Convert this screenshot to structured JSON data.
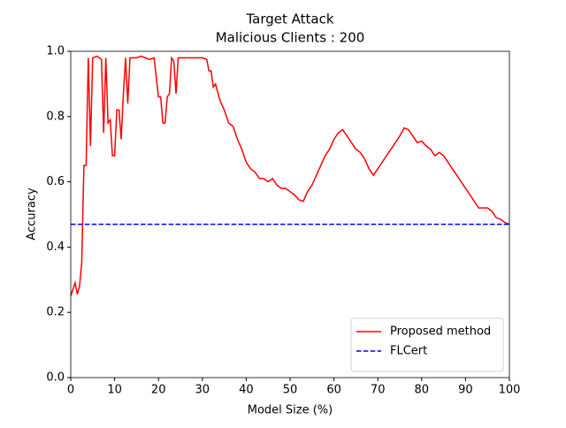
{
  "chart_data": {
    "type": "line",
    "title": "Target Attack",
    "subtitle": "Malicious Clients : 200",
    "xlabel": "Model Size (%)",
    "ylabel": "Accuracy",
    "xlim": [
      0,
      100
    ],
    "ylim": [
      0,
      1
    ],
    "xticks": [
      0,
      10,
      20,
      30,
      40,
      50,
      60,
      70,
      80,
      90,
      100
    ],
    "yticks": [
      {
        "value": 0,
        "label": "0.0"
      },
      0.2,
      0.4,
      0.6,
      0.8,
      {
        "value": 1,
        "label": "1.0"
      }
    ],
    "grid": false,
    "legend": "lower right",
    "series": [
      {
        "name": "Proposed method",
        "color": "#ff0000",
        "dash": "solid",
        "x": [
          0,
          1,
          1.5,
          2,
          2.5,
          3,
          3.5,
          4,
          4.5,
          5,
          6,
          7,
          7.5,
          8,
          8.5,
          9,
          9.5,
          10,
          10.5,
          11,
          11.5,
          12,
          12.5,
          13,
          13.5,
          15,
          16,
          17,
          18,
          19,
          20,
          20.5,
          21,
          21.5,
          22,
          22.5,
          23,
          23.5,
          24,
          24.5,
          26,
          28,
          30,
          31,
          31.5,
          32,
          32.5,
          33,
          34,
          35,
          36,
          37,
          38,
          39,
          40,
          41,
          42,
          43,
          44,
          45,
          46,
          47,
          48,
          49,
          50,
          51,
          52,
          53,
          54,
          55,
          56,
          57,
          58,
          59,
          60,
          61,
          62,
          63,
          64,
          65,
          66,
          67,
          68,
          69,
          70,
          71,
          72,
          73,
          74,
          75,
          76,
          77,
          78,
          79,
          80,
          81,
          82,
          83,
          84,
          85,
          86,
          87,
          88,
          89,
          90,
          91,
          92,
          93,
          94,
          95,
          96,
          97,
          98,
          99,
          100
        ],
        "values": [
          0.25,
          0.29,
          0.255,
          0.28,
          0.35,
          0.65,
          0.65,
          0.98,
          0.71,
          0.98,
          0.985,
          0.975,
          0.75,
          0.98,
          0.78,
          0.79,
          0.68,
          0.68,
          0.82,
          0.82,
          0.73,
          0.87,
          0.98,
          0.84,
          0.98,
          0.98,
          0.985,
          0.98,
          0.975,
          0.98,
          0.86,
          0.86,
          0.78,
          0.78,
          0.86,
          0.87,
          0.98,
          0.97,
          0.87,
          0.98,
          0.98,
          0.98,
          0.98,
          0.975,
          0.94,
          0.94,
          0.89,
          0.9,
          0.85,
          0.82,
          0.78,
          0.77,
          0.73,
          0.7,
          0.66,
          0.64,
          0.63,
          0.61,
          0.61,
          0.6,
          0.61,
          0.59,
          0.58,
          0.58,
          0.57,
          0.56,
          0.545,
          0.54,
          0.57,
          0.59,
          0.62,
          0.65,
          0.68,
          0.7,
          0.73,
          0.75,
          0.76,
          0.74,
          0.72,
          0.7,
          0.69,
          0.67,
          0.64,
          0.62,
          0.64,
          0.66,
          0.68,
          0.7,
          0.72,
          0.74,
          0.765,
          0.76,
          0.74,
          0.72,
          0.725,
          0.71,
          0.7,
          0.68,
          0.69,
          0.68,
          0.66,
          0.64,
          0.62,
          0.6,
          0.58,
          0.56,
          0.54,
          0.52,
          0.52,
          0.52,
          0.51,
          0.49,
          0.485,
          0.475,
          0.47
        ]
      },
      {
        "name": "FLCert",
        "color": "#0000ff",
        "dash": "dashed",
        "x": [
          0,
          100
        ],
        "values": [
          0.47,
          0.47
        ]
      }
    ]
  }
}
